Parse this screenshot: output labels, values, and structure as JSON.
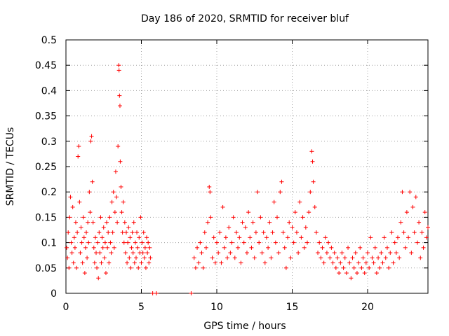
{
  "chart_data": {
    "type": "scatter",
    "title": "Day 186 of 2020, SRMTID for receiver bluf",
    "xlabel": "GPS time / hours",
    "ylabel": "SRMTID / TECUs",
    "xlim": [
      0,
      24
    ],
    "ylim": [
      0,
      0.5
    ],
    "xticks": [
      0,
      5,
      10,
      15,
      20
    ],
    "yticks": [
      0,
      0.05,
      0.1,
      0.15,
      0.2,
      0.25,
      0.3,
      0.35,
      0.4,
      0.45,
      0.5
    ],
    "xtick_labels": [
      "0",
      "5",
      "10",
      "15",
      "20"
    ],
    "ytick_labels": [
      "0",
      "0.05",
      "0.1",
      "0.15",
      "0.2",
      "0.25",
      "0.3",
      "0.35",
      "0.4",
      "0.45",
      "0.5"
    ],
    "grid": true,
    "marker": "+",
    "series": [
      {
        "name": "SRMTID",
        "color": "#ff0000",
        "points": [
          [
            0.05,
            0.09
          ],
          [
            0.1,
            0.07
          ],
          [
            0.15,
            0.12
          ],
          [
            0.2,
            0.05
          ],
          [
            0.25,
            0.15
          ],
          [
            0.3,
            0.19
          ],
          [
            0.35,
            0.1
          ],
          [
            0.4,
            0.08
          ],
          [
            0.45,
            0.17
          ],
          [
            0.5,
            0.06
          ],
          [
            0.55,
            0.11
          ],
          [
            0.6,
            0.09
          ],
          [
            0.65,
            0.14
          ],
          [
            0.7,
            0.05
          ],
          [
            0.75,
            0.12
          ],
          [
            0.8,
            0.27
          ],
          [
            0.85,
            0.29
          ],
          [
            0.9,
            0.18
          ],
          [
            0.95,
            0.08
          ],
          [
            1.0,
            0.13
          ],
          [
            1.05,
            0.1
          ],
          [
            1.1,
            0.06
          ],
          [
            1.15,
            0.15
          ],
          [
            1.2,
            0.11
          ],
          [
            1.25,
            0.04
          ],
          [
            1.3,
            0.09
          ],
          [
            1.35,
            0.12
          ],
          [
            1.4,
            0.07
          ],
          [
            1.45,
            0.14
          ],
          [
            1.5,
            0.1
          ],
          [
            1.55,
            0.2
          ],
          [
            1.6,
            0.16
          ],
          [
            1.65,
            0.3
          ],
          [
            1.7,
            0.31
          ],
          [
            1.75,
            0.22
          ],
          [
            1.8,
            0.14
          ],
          [
            1.85,
            0.09
          ],
          [
            1.9,
            0.06
          ],
          [
            1.95,
            0.11
          ],
          [
            2.0,
            0.08
          ],
          [
            2.05,
            0.05
          ],
          [
            2.1,
            0.1
          ],
          [
            2.15,
            0.03
          ],
          [
            2.2,
            0.12
          ],
          [
            2.25,
            0.08
          ],
          [
            2.3,
            0.15
          ],
          [
            2.35,
            0.06
          ],
          [
            2.4,
            0.11
          ],
          [
            2.45,
            0.09
          ],
          [
            2.5,
            0.13
          ],
          [
            2.55,
            0.07
          ],
          [
            2.6,
            0.1
          ],
          [
            2.65,
            0.04
          ],
          [
            2.7,
            0.14
          ],
          [
            2.75,
            0.09
          ],
          [
            2.8,
            0.12
          ],
          [
            2.85,
            0.06
          ],
          [
            2.9,
            0.15
          ],
          [
            2.95,
            0.1
          ],
          [
            3.0,
            0.08
          ],
          [
            3.05,
            0.18
          ],
          [
            3.1,
            0.12
          ],
          [
            3.15,
            0.2
          ],
          [
            3.2,
            0.09
          ],
          [
            3.25,
            0.16
          ],
          [
            3.3,
            0.24
          ],
          [
            3.35,
            0.19
          ],
          [
            3.4,
            0.14
          ],
          [
            3.45,
            0.29
          ],
          [
            3.5,
            0.45
          ],
          [
            3.52,
            0.44
          ],
          [
            3.55,
            0.39
          ],
          [
            3.58,
            0.37
          ],
          [
            3.6,
            0.26
          ],
          [
            3.65,
            0.21
          ],
          [
            3.7,
            0.16
          ],
          [
            3.75,
            0.12
          ],
          [
            3.8,
            0.18
          ],
          [
            3.85,
            0.1
          ],
          [
            3.9,
            0.14
          ],
          [
            3.95,
            0.08
          ],
          [
            4.0,
            0.12
          ],
          [
            4.05,
            0.06
          ],
          [
            4.1,
            0.1
          ],
          [
            4.15,
            0.13
          ],
          [
            4.2,
            0.07
          ],
          [
            4.25,
            0.11
          ],
          [
            4.3,
            0.05
          ],
          [
            4.35,
            0.09
          ],
          [
            4.4,
            0.12
          ],
          [
            4.45,
            0.08
          ],
          [
            4.5,
            0.14
          ],
          [
            4.55,
            0.06
          ],
          [
            4.6,
            0.1
          ],
          [
            4.65,
            0.07
          ],
          [
            4.7,
            0.12
          ],
          [
            4.75,
            0.09
          ],
          [
            4.8,
            0.05
          ],
          [
            4.85,
            0.11
          ],
          [
            4.9,
            0.08
          ],
          [
            4.95,
            0.15
          ],
          [
            5.0,
            0.06
          ],
          [
            5.05,
            0.1
          ],
          [
            5.1,
            0.08
          ],
          [
            5.15,
            0.12
          ],
          [
            5.2,
            0.07
          ],
          [
            5.25,
            0.09
          ],
          [
            5.3,
            0.05
          ],
          [
            5.35,
            0.11
          ],
          [
            5.4,
            0.08
          ],
          [
            5.45,
            0.1
          ],
          [
            5.5,
            0.06
          ],
          [
            5.55,
            0.09
          ],
          [
            5.6,
            0.07
          ],
          [
            5.75,
            0.0
          ],
          [
            6.0,
            0.0
          ],
          [
            8.3,
            0.0
          ],
          [
            8.5,
            0.07
          ],
          [
            8.6,
            0.05
          ],
          [
            8.7,
            0.09
          ],
          [
            8.8,
            0.06
          ],
          [
            8.9,
            0.1
          ],
          [
            9.0,
            0.08
          ],
          [
            9.1,
            0.05
          ],
          [
            9.2,
            0.12
          ],
          [
            9.3,
            0.09
          ],
          [
            9.4,
            0.14
          ],
          [
            9.5,
            0.21
          ],
          [
            9.55,
            0.2
          ],
          [
            9.6,
            0.15
          ],
          [
            9.7,
            0.07
          ],
          [
            9.8,
            0.11
          ],
          [
            9.9,
            0.06
          ],
          [
            10.0,
            0.1
          ],
          [
            10.1,
            0.08
          ],
          [
            10.2,
            0.12
          ],
          [
            10.3,
            0.06
          ],
          [
            10.4,
            0.17
          ],
          [
            10.5,
            0.09
          ],
          [
            10.6,
            0.11
          ],
          [
            10.7,
            0.07
          ],
          [
            10.8,
            0.13
          ],
          [
            10.9,
            0.08
          ],
          [
            11.0,
            0.1
          ],
          [
            11.1,
            0.15
          ],
          [
            11.2,
            0.07
          ],
          [
            11.3,
            0.12
          ],
          [
            11.4,
            0.09
          ],
          [
            11.5,
            0.11
          ],
          [
            11.6,
            0.06
          ],
          [
            11.7,
            0.14
          ],
          [
            11.8,
            0.1
          ],
          [
            11.9,
            0.13
          ],
          [
            12.0,
            0.08
          ],
          [
            12.1,
            0.16
          ],
          [
            12.2,
            0.11
          ],
          [
            12.3,
            0.09
          ],
          [
            12.4,
            0.14
          ],
          [
            12.5,
            0.07
          ],
          [
            12.6,
            0.12
          ],
          [
            12.7,
            0.2
          ],
          [
            12.8,
            0.1
          ],
          [
            12.9,
            0.15
          ],
          [
            13.0,
            0.08
          ],
          [
            13.1,
            0.12
          ],
          [
            13.2,
            0.06
          ],
          [
            13.3,
            0.11
          ],
          [
            13.4,
            0.09
          ],
          [
            13.5,
            0.14
          ],
          [
            13.6,
            0.07
          ],
          [
            13.7,
            0.12
          ],
          [
            13.8,
            0.18
          ],
          [
            13.9,
            0.1
          ],
          [
            14.0,
            0.15
          ],
          [
            14.1,
            0.08
          ],
          [
            14.2,
            0.2
          ],
          [
            14.3,
            0.22
          ],
          [
            14.4,
            0.12
          ],
          [
            14.5,
            0.09
          ],
          [
            14.6,
            0.05
          ],
          [
            14.7,
            0.11
          ],
          [
            14.8,
            0.14
          ],
          [
            14.9,
            0.07
          ],
          [
            15.0,
            0.13
          ],
          [
            15.1,
            0.1
          ],
          [
            15.2,
            0.16
          ],
          [
            15.3,
            0.12
          ],
          [
            15.4,
            0.08
          ],
          [
            15.5,
            0.18
          ],
          [
            15.6,
            0.11
          ],
          [
            15.7,
            0.15
          ],
          [
            15.8,
            0.09
          ],
          [
            15.9,
            0.13
          ],
          [
            16.0,
            0.1
          ],
          [
            16.1,
            0.16
          ],
          [
            16.2,
            0.2
          ],
          [
            16.3,
            0.28
          ],
          [
            16.35,
            0.26
          ],
          [
            16.4,
            0.22
          ],
          [
            16.5,
            0.17
          ],
          [
            16.6,
            0.12
          ],
          [
            16.7,
            0.08
          ],
          [
            16.8,
            0.1
          ],
          [
            16.9,
            0.07
          ],
          [
            17.0,
            0.09
          ],
          [
            17.1,
            0.06
          ],
          [
            17.2,
            0.11
          ],
          [
            17.3,
            0.08
          ],
          [
            17.4,
            0.1
          ],
          [
            17.5,
            0.07
          ],
          [
            17.6,
            0.09
          ],
          [
            17.7,
            0.06
          ],
          [
            17.8,
            0.08
          ],
          [
            17.9,
            0.05
          ],
          [
            18.0,
            0.07
          ],
          [
            18.1,
            0.04
          ],
          [
            18.2,
            0.06
          ],
          [
            18.3,
            0.08
          ],
          [
            18.4,
            0.05
          ],
          [
            18.5,
            0.07
          ],
          [
            18.6,
            0.04
          ],
          [
            18.7,
            0.09
          ],
          [
            18.8,
            0.06
          ],
          [
            18.9,
            0.03
          ],
          [
            19.0,
            0.07
          ],
          [
            19.1,
            0.05
          ],
          [
            19.2,
            0.08
          ],
          [
            19.3,
            0.04
          ],
          [
            19.4,
            0.06
          ],
          [
            19.5,
            0.09
          ],
          [
            19.6,
            0.05
          ],
          [
            19.7,
            0.07
          ],
          [
            19.8,
            0.04
          ],
          [
            19.9,
            0.06
          ],
          [
            20.0,
            0.08
          ],
          [
            20.1,
            0.05
          ],
          [
            20.2,
            0.11
          ],
          [
            20.3,
            0.07
          ],
          [
            20.4,
            0.06
          ],
          [
            20.5,
            0.09
          ],
          [
            20.6,
            0.04
          ],
          [
            20.7,
            0.07
          ],
          [
            20.8,
            0.05
          ],
          [
            20.9,
            0.08
          ],
          [
            21.0,
            0.06
          ],
          [
            21.1,
            0.11
          ],
          [
            21.2,
            0.07
          ],
          [
            21.3,
            0.09
          ],
          [
            21.4,
            0.05
          ],
          [
            21.5,
            0.08
          ],
          [
            21.6,
            0.12
          ],
          [
            21.7,
            0.06
          ],
          [
            21.8,
            0.1
          ],
          [
            21.9,
            0.08
          ],
          [
            22.0,
            0.11
          ],
          [
            22.1,
            0.07
          ],
          [
            22.2,
            0.14
          ],
          [
            22.3,
            0.2
          ],
          [
            22.4,
            0.12
          ],
          [
            22.5,
            0.09
          ],
          [
            22.6,
            0.16
          ],
          [
            22.7,
            0.11
          ],
          [
            22.8,
            0.2
          ],
          [
            22.9,
            0.08
          ],
          [
            23.0,
            0.17
          ],
          [
            23.1,
            0.12
          ],
          [
            23.2,
            0.19
          ],
          [
            23.3,
            0.1
          ],
          [
            23.4,
            0.14
          ],
          [
            23.5,
            0.07
          ],
          [
            23.6,
            0.12
          ],
          [
            23.7,
            0.09
          ],
          [
            23.8,
            0.16
          ],
          [
            23.9,
            0.11
          ],
          [
            24.0,
            0.13
          ]
        ]
      }
    ]
  }
}
